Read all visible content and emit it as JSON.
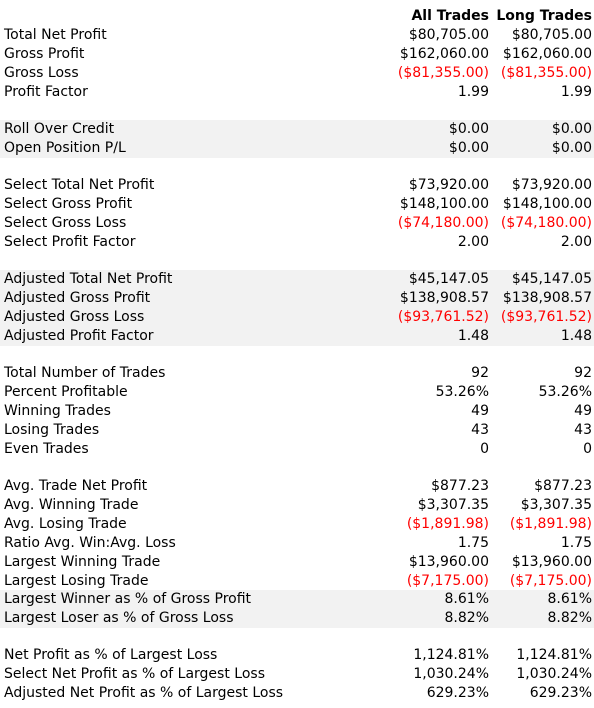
{
  "columns": {
    "all": "All Trades",
    "long": "Long Trades"
  },
  "colors": {
    "negative": "#ff0000",
    "shaded": "#f2f2f2"
  },
  "sections": [
    {
      "shaded": false,
      "rows": [
        {
          "label": "Total Net Profit",
          "all": "$80,705.00",
          "long": "$80,705.00",
          "negative": false
        },
        {
          "label": "Gross Profit",
          "all": "$162,060.00",
          "long": "$162,060.00",
          "negative": false
        },
        {
          "label": "Gross Loss",
          "all": "($81,355.00)",
          "long": "($81,355.00)",
          "negative": true
        },
        {
          "label": "Profit Factor",
          "all": "1.99",
          "long": "1.99",
          "negative": false
        }
      ]
    },
    {
      "shaded": true,
      "rows": [
        {
          "label": "Roll Over Credit",
          "all": "$0.00",
          "long": "$0.00",
          "negative": false
        },
        {
          "label": "Open Position P/L",
          "all": "$0.00",
          "long": "$0.00",
          "negative": false
        }
      ]
    },
    {
      "shaded": false,
      "rows": [
        {
          "label": "Select Total Net Profit",
          "all": "$73,920.00",
          "long": "$73,920.00",
          "negative": false
        },
        {
          "label": "Select Gross Profit",
          "all": "$148,100.00",
          "long": "$148,100.00",
          "negative": false
        },
        {
          "label": "Select Gross Loss",
          "all": "($74,180.00)",
          "long": "($74,180.00)",
          "negative": true
        },
        {
          "label": "Select Profit Factor",
          "all": "2.00",
          "long": "2.00",
          "negative": false
        }
      ]
    },
    {
      "shaded": true,
      "rows": [
        {
          "label": "Adjusted Total Net Profit",
          "all": "$45,147.05",
          "long": "$45,147.05",
          "negative": false
        },
        {
          "label": "Adjusted Gross Profit",
          "all": "$138,908.57",
          "long": "$138,908.57",
          "negative": false
        },
        {
          "label": "Adjusted Gross Loss",
          "all": "($93,761.52)",
          "long": "($93,761.52)",
          "negative": true
        },
        {
          "label": "Adjusted Profit Factor",
          "all": "1.48",
          "long": "1.48",
          "negative": false
        }
      ]
    },
    {
      "shaded": false,
      "rows": [
        {
          "label": "Total Number of Trades",
          "all": "92",
          "long": "92",
          "negative": false
        },
        {
          "label": "Percent Profitable",
          "all": "53.26%",
          "long": "53.26%",
          "negative": false
        },
        {
          "label": "Winning Trades",
          "all": "49",
          "long": "49",
          "negative": false
        },
        {
          "label": "Losing Trades",
          "all": "43",
          "long": "43",
          "negative": false
        },
        {
          "label": "Even Trades",
          "all": "0",
          "long": "0",
          "negative": false
        }
      ]
    },
    {
      "shaded": false,
      "rows": [
        {
          "label": "Avg. Trade Net Profit",
          "all": "$877.23",
          "long": "$877.23",
          "negative": false
        },
        {
          "label": "Avg. Winning Trade",
          "all": "$3,307.35",
          "long": "$3,307.35",
          "negative": false
        },
        {
          "label": "Avg. Losing Trade",
          "all": "($1,891.98)",
          "long": "($1,891.98)",
          "negative": true
        },
        {
          "label": "Ratio Avg. Win:Avg. Loss",
          "all": "1.75",
          "long": "1.75",
          "negative": false
        },
        {
          "label": "Largest Winning Trade",
          "all": "$13,960.00",
          "long": "$13,960.00",
          "negative": false
        },
        {
          "label": "Largest Losing Trade",
          "all": "($7,175.00)",
          "long": "($7,175.00)",
          "negative": true
        }
      ]
    },
    {
      "shaded": true,
      "rows": [
        {
          "label": "Largest Winner as % of Gross Profit",
          "all": "8.61%",
          "long": "8.61%",
          "negative": false
        },
        {
          "label": "Largest Loser as % of Gross Loss",
          "all": "8.82%",
          "long": "8.82%",
          "negative": false
        }
      ]
    },
    {
      "shaded": false,
      "rows": [
        {
          "label": "Net Profit as % of Largest Loss",
          "all": "1,124.81%",
          "long": "1,124.81%",
          "negative": false
        },
        {
          "label": "Select Net Profit as % of Largest Loss",
          "all": "1,030.24%",
          "long": "1,030.24%",
          "negative": false
        },
        {
          "label": "Adjusted Net Profit as % of Largest Loss",
          "all": "629.23%",
          "long": "629.23%",
          "negative": false
        }
      ]
    }
  ]
}
